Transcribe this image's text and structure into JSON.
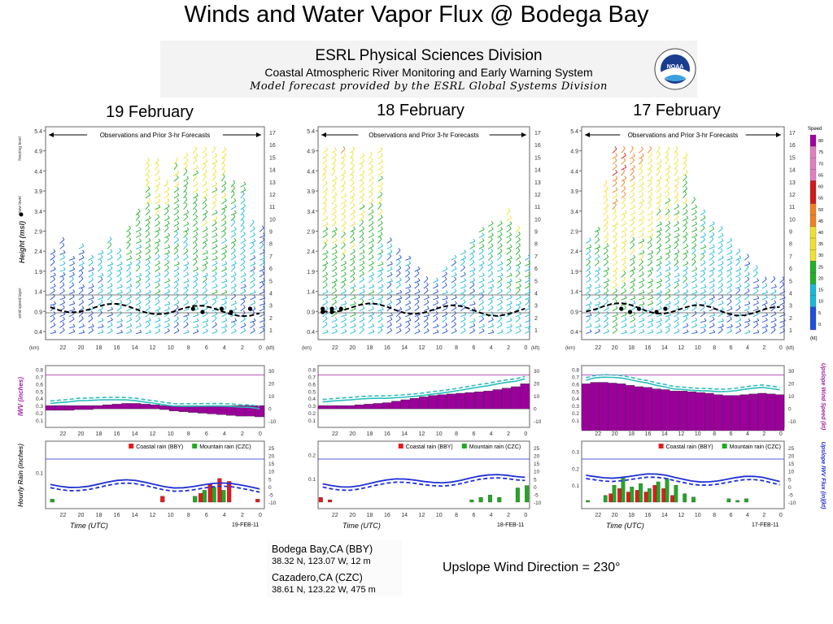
{
  "slide_title": "Winds and Water Vapor Flux @ Bodega Bay",
  "header": {
    "org": "ESRL Physical Sciences Division",
    "system": "Coastal Atmospheric River Monitoring and Early Warning System",
    "model_note": "Model forecast provided by the ESRL Global Systems Division",
    "logo_text": "NOAA"
  },
  "panels": [
    {
      "date_title": "19 February",
      "date_stamp": "19-FEB-11"
    },
    {
      "date_title": "18 February",
      "date_stamp": "18-FEB-11"
    },
    {
      "date_title": "17 February",
      "date_stamp": "17-FEB-11"
    }
  ],
  "stations": {
    "bby_name": "Bodega Bay,CA (BBY)",
    "bby_coord": "38.32 N, 123.07 W, 12 m",
    "czc_name": "Cazadero,CA (CZC)",
    "czc_coord": "38.61 N, 123.22 W, 475 m"
  },
  "upslope_note": "Upslope Wind Direction = 230°",
  "colors": {
    "iwv_bar": "#9b009b",
    "flux_line": "#1f2fd6",
    "iwv_line": "#2bbdbd",
    "coastal_rain": "#e41a1c",
    "mountain_rain": "#22a822",
    "upslope_label": "#a020a0"
  },
  "chart_data": [
    {
      "type": "bar",
      "title": "19 February",
      "annotations": [
        "Observations and Prior 3-hr Forecasts"
      ],
      "ylabel_profile": "Height (msl)",
      "ylabel_profile_units": "(km)",
      "yticks_km": [
        "0.4",
        "0.9",
        "1.4",
        "1.9",
        "2.4",
        "2.9",
        "3.4",
        "3.9",
        "4.4",
        "4.9",
        "5.4"
      ],
      "yticks_kft": [
        "1",
        "2",
        "3",
        "4",
        "5",
        "6",
        "7",
        "8",
        "9",
        "10",
        "11",
        "12",
        "13",
        "14",
        "15",
        "16",
        "17"
      ],
      "right_units": "(kft)",
      "level_labels": [
        "freezing level",
        "snow level",
        "wind speed layer"
      ],
      "ylabel_iwv": "IWV (inches)",
      "iwv_ticks": [
        "0.1",
        "0.2",
        "0.3",
        "0.4",
        "0.5",
        "0.6",
        "0.7",
        "0.8"
      ],
      "iwv_right_ticks": [
        "-10",
        "0",
        "10",
        "20",
        "30"
      ],
      "ylabel_rain": "Hourly Rain (inches)",
      "rain_ticks": [
        "0.1"
      ],
      "rain_right_ticks": [
        "-10",
        "-5",
        "0",
        "5",
        "10",
        "15",
        "20",
        "25"
      ],
      "x": [
        "22",
        "20",
        "18",
        "16",
        "14",
        "12",
        "10",
        "8",
        "6",
        "4",
        "2",
        "0"
      ],
      "xlabel": "Time (UTC)",
      "legend": [
        "Coastal rain (BBY)",
        "Mountain rain (CZC)"
      ],
      "iwv_bars": [
        0.28,
        0.28,
        0.28,
        0.29,
        0.29,
        0.3,
        0.31,
        0.32,
        0.33,
        0.33,
        0.32,
        0.31,
        0.29,
        0.27,
        0.26,
        0.25,
        0.24,
        0.23,
        0.22,
        0.21,
        0.2,
        0.2,
        0.19
      ],
      "coastal_rain": [
        0,
        0,
        0,
        0,
        0,
        0,
        0,
        0,
        0,
        0,
        0,
        0,
        0.02,
        0,
        0,
        0,
        0.03,
        0.06,
        0.08,
        0.07,
        0,
        0,
        0.01
      ],
      "mountain_rain": [
        0.01,
        0,
        0,
        0,
        0,
        0,
        0,
        0,
        0,
        0,
        0,
        0,
        0,
        0,
        0,
        0.02,
        0.04,
        0.05,
        0.04,
        0,
        0,
        0,
        0
      ]
    },
    {
      "type": "bar",
      "title": "18 February",
      "annotations": [
        "Observations and Prior 3-hr Forecasts"
      ],
      "x": [
        "22",
        "20",
        "18",
        "16",
        "14",
        "12",
        "10",
        "8",
        "6",
        "4",
        "2",
        "0"
      ],
      "xlabel": "Time (UTC)",
      "legend": [
        "Coastal rain (BBY)",
        "Mountain rain (CZC)"
      ],
      "rain_ticks": [
        "0.1",
        "0.2"
      ],
      "iwv_bars": [
        0.3,
        0.3,
        0.3,
        0.3,
        0.31,
        0.32,
        0.33,
        0.34,
        0.36,
        0.38,
        0.4,
        0.42,
        0.44,
        0.45,
        0.46,
        0.47,
        0.48,
        0.49,
        0.5,
        0.52,
        0.54,
        0.56,
        0.6
      ],
      "coastal_rain": [
        0.02,
        0.01,
        0,
        0,
        0,
        0,
        0,
        0,
        0,
        0,
        0,
        0,
        0,
        0,
        0,
        0,
        0,
        0,
        0,
        0,
        0,
        0,
        0
      ],
      "mountain_rain": [
        0,
        0,
        0,
        0,
        0,
        0,
        0,
        0,
        0,
        0,
        0,
        0,
        0,
        0,
        0,
        0,
        0.01,
        0.02,
        0.03,
        0.02,
        0,
        0.06,
        0.07
      ]
    },
    {
      "type": "bar",
      "title": "17 February",
      "annotations": [
        "Observations and Prior 3-hr Forecasts"
      ],
      "legend_speed_title": "Speed",
      "legend_speed_ticks": [
        "0",
        "5",
        "10",
        "15",
        "20",
        "25",
        "30",
        "35",
        "40",
        "45",
        "50",
        "55",
        "60",
        "65",
        "70",
        "75",
        "80"
      ],
      "legend_speed_units": "(kt)",
      "ylabel_upslope": "Upslope Wind Speed (kt)",
      "ylabel_flux": "Upslope IWV Flux (in)(kt)",
      "x": [
        "22",
        "20",
        "18",
        "16",
        "14",
        "12",
        "10",
        "8",
        "6",
        "4",
        "2",
        "0"
      ],
      "xlabel": "Time (UTC)",
      "legend": [
        "Coastal rain (BBY)",
        "Mountain rain (CZC)"
      ],
      "rain_ticks": [
        "0.1",
        "0.2",
        "0.3"
      ],
      "iwv_bars": [
        0.6,
        0.62,
        0.62,
        0.61,
        0.6,
        0.58,
        0.56,
        0.55,
        0.53,
        0.52,
        0.5,
        0.5,
        0.49,
        0.48,
        0.47,
        0.45,
        0.44,
        0.44,
        0.45,
        0.46,
        0.47,
        0.46,
        0.45
      ],
      "coastal_rain": [
        0,
        0,
        0,
        0.05,
        0.08,
        0.06,
        0.07,
        0.06,
        0.1,
        0.08,
        0.04,
        0,
        0,
        0,
        0,
        0,
        0,
        0,
        0,
        0,
        0,
        0,
        0
      ],
      "mountain_rain": [
        0.01,
        0,
        0.04,
        0.1,
        0.15,
        0.09,
        0.11,
        0.08,
        0.12,
        0.14,
        0.1,
        0.05,
        0.03,
        0,
        0,
        0,
        0.02,
        0.01,
        0.02,
        0,
        0,
        0,
        0
      ]
    }
  ]
}
